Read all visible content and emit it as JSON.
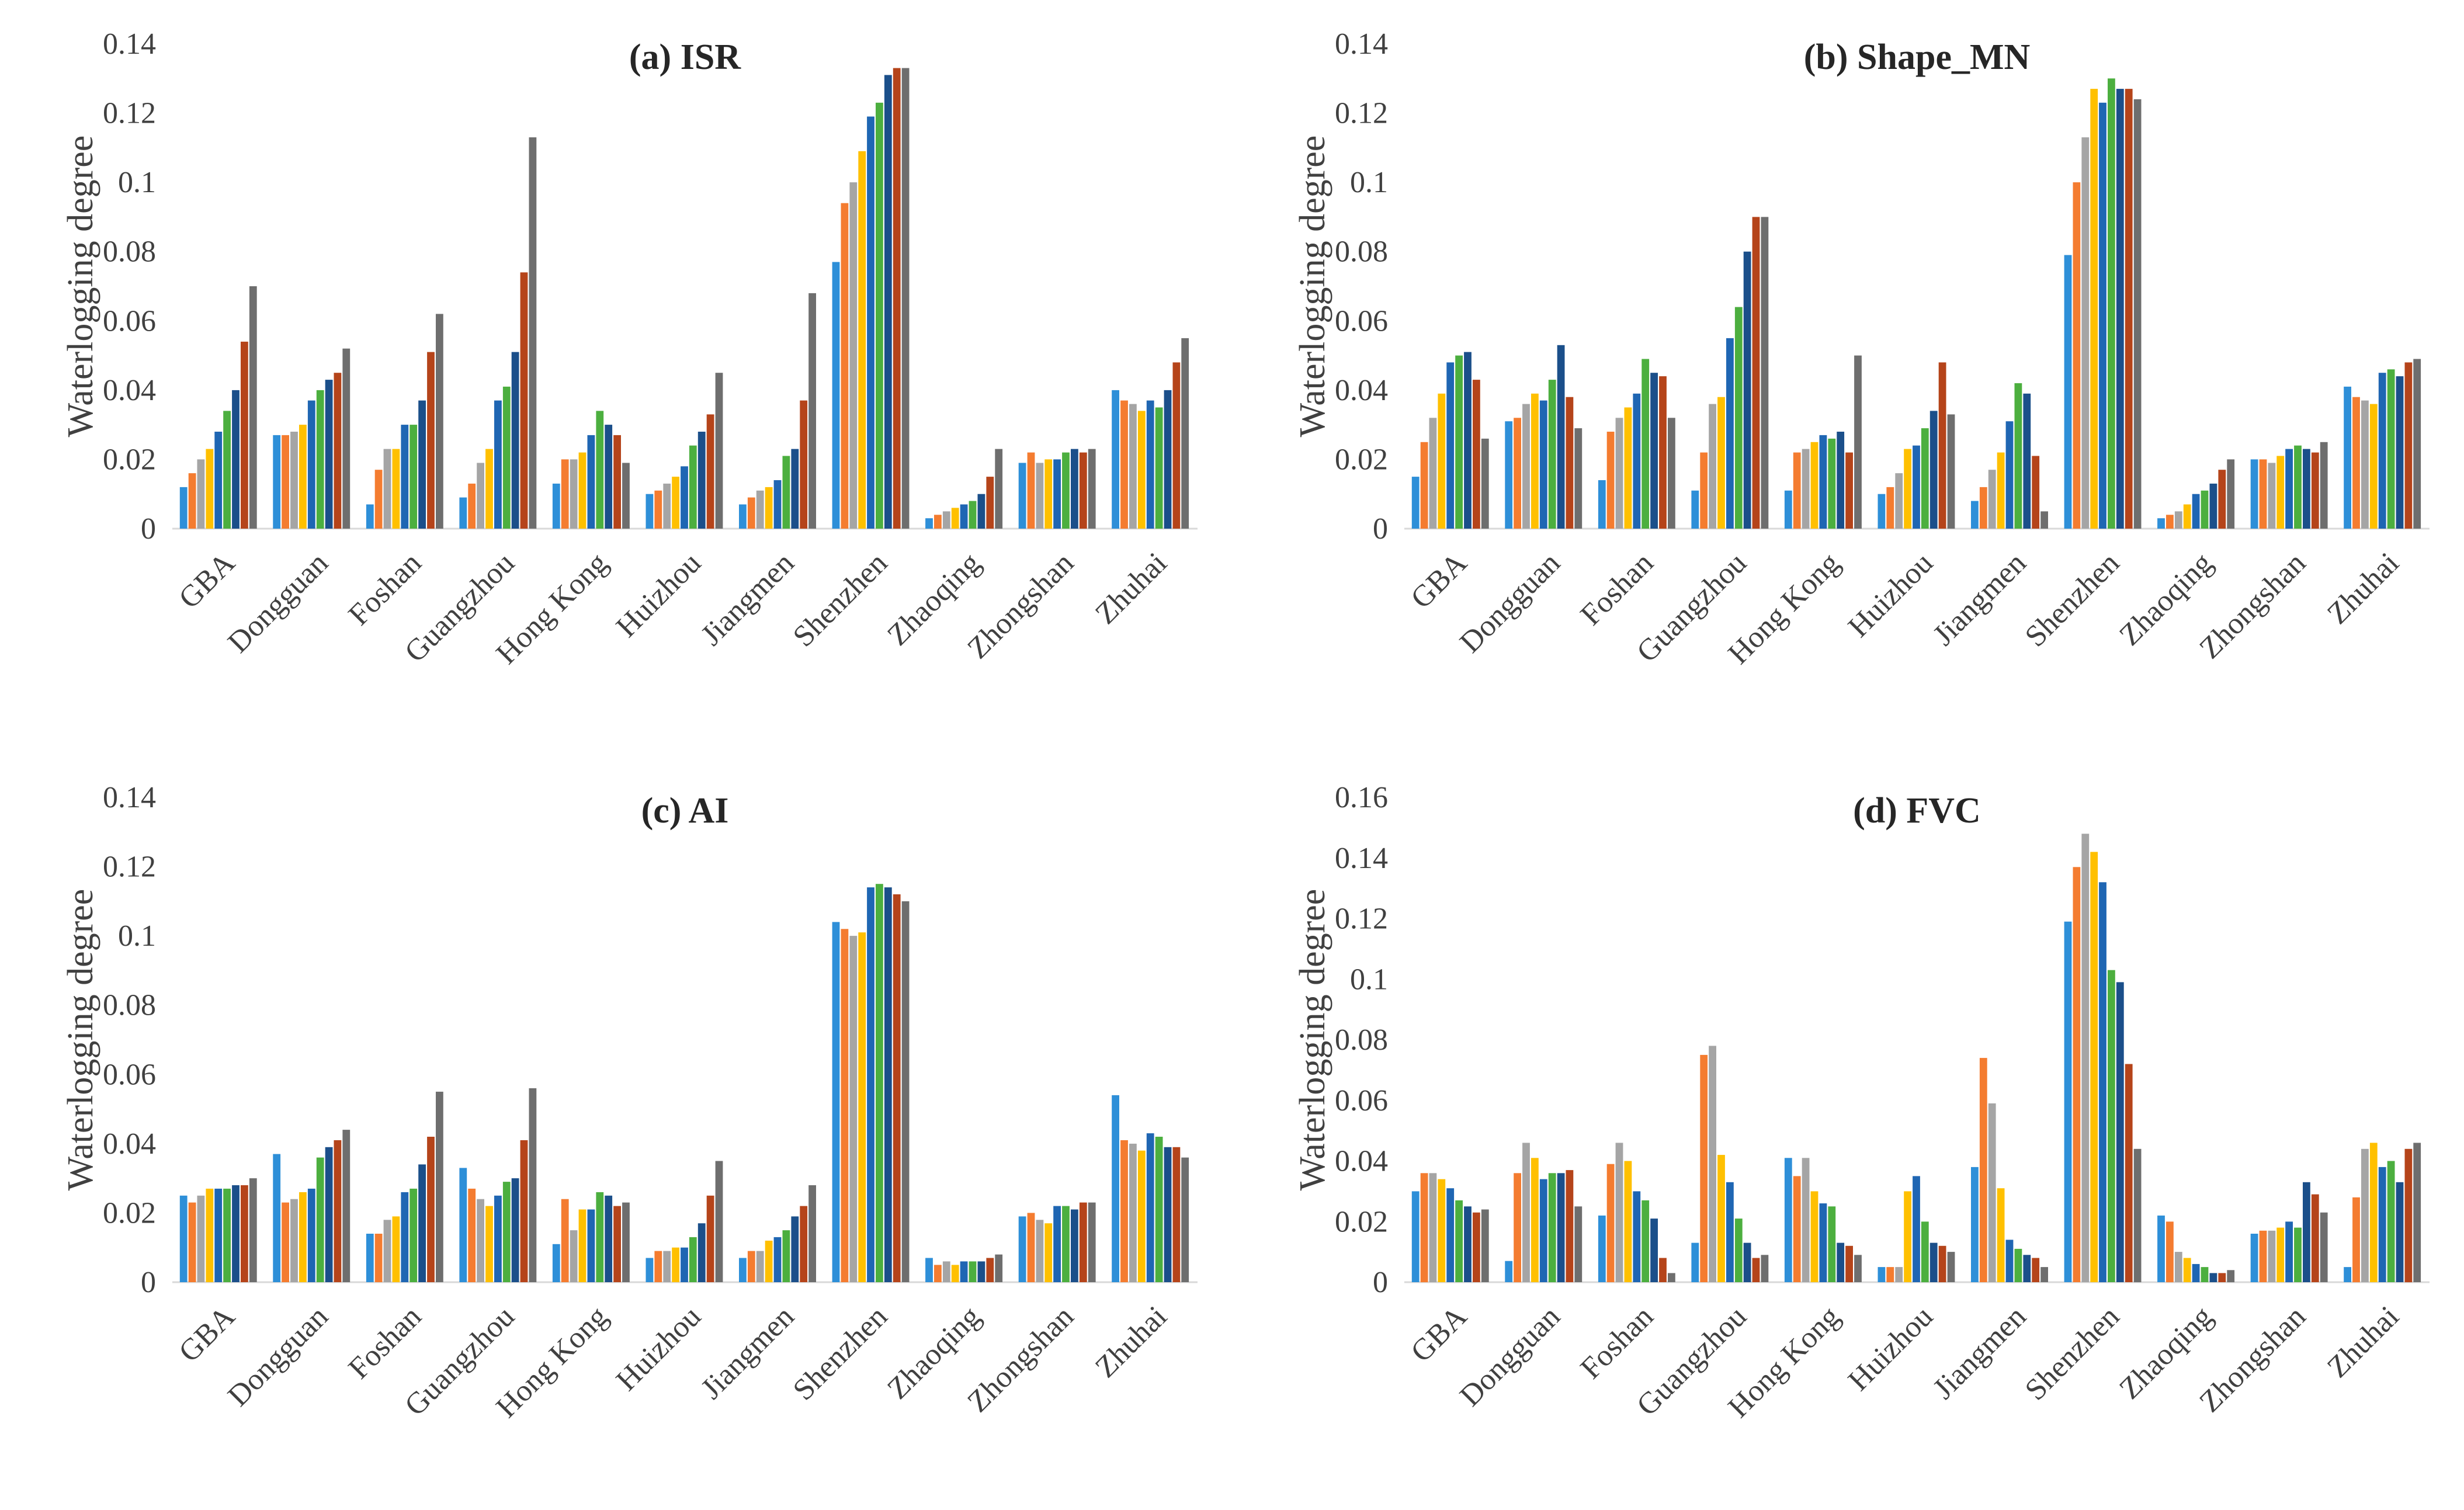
{
  "colors": [
    "#2e8fd8",
    "#f47c30",
    "#a5a5a5",
    "#ffc000",
    "#1f66b3",
    "#4caf3f",
    "#1b4f8a",
    "#b5441a",
    "#6e6e6e"
  ],
  "chart_data": [
    {
      "type": "bar",
      "title": "(a) ISR",
      "xlabel": "",
      "ylabel": "Waterlogging degree",
      "ylim": [
        0,
        0.14
      ],
      "yticks": [
        "0",
        "0.02",
        "0.04",
        "0.06",
        "0.08",
        "0.1",
        "0.12",
        "0.14"
      ],
      "grid": false,
      "legend": "none",
      "categories": [
        "GBA",
        "Dongguan",
        "Foshan",
        "Guangzhou",
        "Hong Kong",
        "Huizhou",
        "Jiangmen",
        "Shenzhen",
        "Zhaoqing",
        "Zhongshan",
        "Zhuhai"
      ],
      "values": [
        [
          0.012,
          0.016,
          0.02,
          0.023,
          0.028,
          0.034,
          0.04,
          0.054,
          0.07
        ],
        [
          0.027,
          0.027,
          0.028,
          0.03,
          0.037,
          0.04,
          0.043,
          0.045,
          0.052
        ],
        [
          0.007,
          0.017,
          0.023,
          0.023,
          0.03,
          0.03,
          0.037,
          0.051,
          0.062
        ],
        [
          0.009,
          0.013,
          0.019,
          0.023,
          0.037,
          0.041,
          0.051,
          0.074,
          0.113
        ],
        [
          0.013,
          0.02,
          0.02,
          0.022,
          0.027,
          0.034,
          0.03,
          0.027,
          0.019
        ],
        [
          0.01,
          0.011,
          0.013,
          0.015,
          0.018,
          0.024,
          0.028,
          0.033,
          0.045
        ],
        [
          0.007,
          0.009,
          0.011,
          0.012,
          0.014,
          0.021,
          0.023,
          0.037,
          0.068
        ],
        [
          0.077,
          0.094,
          0.1,
          0.109,
          0.119,
          0.123,
          0.131,
          0.133,
          0.133
        ],
        [
          0.003,
          0.004,
          0.005,
          0.006,
          0.007,
          0.008,
          0.01,
          0.015,
          0.023
        ],
        [
          0.019,
          0.022,
          0.019,
          0.02,
          0.02,
          0.022,
          0.023,
          0.022,
          0.023
        ],
        [
          0.04,
          0.037,
          0.036,
          0.034,
          0.037,
          0.035,
          0.04,
          0.048,
          0.055
        ]
      ]
    },
    {
      "type": "bar",
      "title": "(b) Shape_MN",
      "xlabel": "",
      "ylabel": "Waterlogging degree",
      "ylim": [
        0,
        0.14
      ],
      "yticks": [
        "0",
        "0.02",
        "0.04",
        "0.06",
        "0.08",
        "0.1",
        "0.12",
        "0.14"
      ],
      "grid": false,
      "legend": "none",
      "categories": [
        "GBA",
        "Dongguan",
        "Foshan",
        "Guangzhou",
        "Hong Kong",
        "Huizhou",
        "Jiangmen",
        "Shenzhen",
        "Zhaoqing",
        "Zhongshan",
        "Zhuhai"
      ],
      "values": [
        [
          0.015,
          0.025,
          0.032,
          0.039,
          0.048,
          0.05,
          0.051,
          0.043,
          0.026
        ],
        [
          0.031,
          0.032,
          0.036,
          0.039,
          0.037,
          0.043,
          0.053,
          0.038,
          0.029
        ],
        [
          0.014,
          0.028,
          0.032,
          0.035,
          0.039,
          0.049,
          0.045,
          0.044,
          0.032
        ],
        [
          0.011,
          0.022,
          0.036,
          0.038,
          0.055,
          0.064,
          0.08,
          0.09,
          0.09
        ],
        [
          0.011,
          0.022,
          0.023,
          0.025,
          0.027,
          0.026,
          0.028,
          0.022,
          0.05
        ],
        [
          0.01,
          0.012,
          0.016,
          0.023,
          0.024,
          0.029,
          0.034,
          0.048,
          0.033
        ],
        [
          0.008,
          0.012,
          0.017,
          0.022,
          0.031,
          0.042,
          0.039,
          0.021,
          0.005
        ],
        [
          0.079,
          0.1,
          0.113,
          0.127,
          0.123,
          0.13,
          0.127,
          0.127,
          0.124
        ],
        [
          0.003,
          0.004,
          0.005,
          0.007,
          0.01,
          0.011,
          0.013,
          0.017,
          0.02
        ],
        [
          0.02,
          0.02,
          0.019,
          0.021,
          0.023,
          0.024,
          0.023,
          0.022,
          0.025
        ],
        [
          0.041,
          0.038,
          0.037,
          0.036,
          0.045,
          0.046,
          0.044,
          0.048,
          0.049
        ]
      ]
    },
    {
      "type": "bar",
      "title": "(c) AI",
      "xlabel": "",
      "ylabel": "Waterlogging degree",
      "ylim": [
        0,
        0.14
      ],
      "yticks": [
        "0",
        "0.02",
        "0.04",
        "0.06",
        "0.08",
        "0.1",
        "0.12",
        "0.14"
      ],
      "grid": false,
      "legend": "none",
      "categories": [
        "GBA",
        "Dongguan",
        "Foshan",
        "Guangzhou",
        "Hong Kong",
        "Huizhou",
        "Jiangmen",
        "Shenzhen",
        "Zhaoqing",
        "Zhongshan",
        "Zhuhai"
      ],
      "values": [
        [
          0.025,
          0.023,
          0.025,
          0.027,
          0.027,
          0.027,
          0.028,
          0.028,
          0.03
        ],
        [
          0.037,
          0.023,
          0.024,
          0.026,
          0.027,
          0.036,
          0.039,
          0.041,
          0.044
        ],
        [
          0.014,
          0.014,
          0.018,
          0.019,
          0.026,
          0.027,
          0.034,
          0.042,
          0.055
        ],
        [
          0.033,
          0.027,
          0.024,
          0.022,
          0.025,
          0.029,
          0.03,
          0.041,
          0.056
        ],
        [
          0.011,
          0.024,
          0.015,
          0.021,
          0.021,
          0.026,
          0.025,
          0.022,
          0.023
        ],
        [
          0.007,
          0.009,
          0.009,
          0.01,
          0.01,
          0.013,
          0.017,
          0.025,
          0.035
        ],
        [
          0.007,
          0.009,
          0.009,
          0.012,
          0.013,
          0.015,
          0.019,
          0.022,
          0.028
        ],
        [
          0.104,
          0.102,
          0.1,
          0.101,
          0.114,
          0.115,
          0.114,
          0.112,
          0.11
        ],
        [
          0.007,
          0.005,
          0.006,
          0.005,
          0.006,
          0.006,
          0.006,
          0.007,
          0.008
        ],
        [
          0.019,
          0.02,
          0.018,
          0.017,
          0.022,
          0.022,
          0.021,
          0.023,
          0.023
        ],
        [
          0.054,
          0.041,
          0.04,
          0.038,
          0.043,
          0.042,
          0.039,
          0.039,
          0.036
        ]
      ]
    },
    {
      "type": "bar",
      "title": "(d) FVC",
      "xlabel": "",
      "ylabel": "Waterlogging degree",
      "ylim": [
        0,
        0.16
      ],
      "yticks": [
        "0",
        "0.02",
        "0.04",
        "0.06",
        "0.08",
        "0.1",
        "0.12",
        "0.14",
        "0.16"
      ],
      "grid": false,
      "legend": "none",
      "categories": [
        "GBA",
        "Dongguan",
        "Foshan",
        "Guangzhou",
        "Hong Kong",
        "Huizhou",
        "Jiangmen",
        "Shenzhen",
        "Zhaoqing",
        "Zhongshan",
        "Zhuhai"
      ],
      "values": [
        [
          0.03,
          0.036,
          0.036,
          0.034,
          0.031,
          0.027,
          0.025,
          0.023,
          0.024
        ],
        [
          0.007,
          0.036,
          0.046,
          0.041,
          0.034,
          0.036,
          0.036,
          0.037,
          0.025
        ],
        [
          0.022,
          0.039,
          0.046,
          0.04,
          0.03,
          0.027,
          0.021,
          0.008,
          0.003
        ],
        [
          0.013,
          0.075,
          0.078,
          0.042,
          0.033,
          0.021,
          0.013,
          0.008,
          0.009
        ],
        [
          0.041,
          0.035,
          0.041,
          0.03,
          0.026,
          0.025,
          0.013,
          0.012,
          0.009
        ],
        [
          0.005,
          0.005,
          0.005,
          0.03,
          0.035,
          0.02,
          0.013,
          0.012,
          0.01
        ],
        [
          0.038,
          0.074,
          0.059,
          0.031,
          0.014,
          0.011,
          0.009,
          0.008,
          0.005
        ],
        [
          0.119,
          0.137,
          0.148,
          0.142,
          0.132,
          0.103,
          0.099,
          0.072,
          0.044
        ],
        [
          0.022,
          0.02,
          0.01,
          0.008,
          0.006,
          0.005,
          0.003,
          0.003,
          0.004
        ],
        [
          0.016,
          0.017,
          0.017,
          0.018,
          0.02,
          0.018,
          0.033,
          0.029,
          0.023
        ],
        [
          0.005,
          0.028,
          0.044,
          0.046,
          0.038,
          0.04,
          0.033,
          0.044,
          0.046
        ]
      ]
    }
  ]
}
